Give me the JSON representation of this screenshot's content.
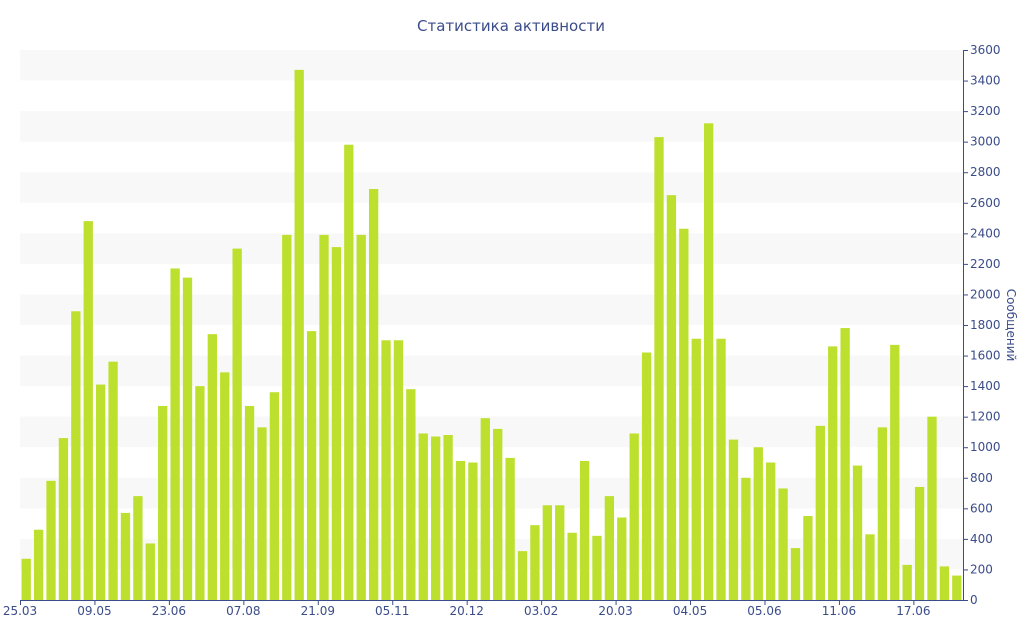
{
  "chart_data": {
    "type": "bar",
    "title": "Статистика активности",
    "ylabel": "Сообщений",
    "xlabel": "",
    "ylim": [
      0,
      3600
    ],
    "y_ticks": [
      0,
      200,
      400,
      600,
      800,
      1000,
      1200,
      1400,
      1600,
      1800,
      2000,
      2200,
      2400,
      2600,
      2800,
      3000,
      3200,
      3400,
      3600
    ],
    "y_axis_side": "right",
    "grid": "alternating horizontal bands",
    "x_tick_labels": [
      {
        "index": 0,
        "label": "25.03"
      },
      {
        "index": 6,
        "label": "09.05"
      },
      {
        "index": 12,
        "label": "23.06"
      },
      {
        "index": 18,
        "label": "07.08"
      },
      {
        "index": 24,
        "label": "21.09"
      },
      {
        "index": 30,
        "label": "05.11"
      },
      {
        "index": 36,
        "label": "20.12"
      },
      {
        "index": 42,
        "label": "03.02"
      },
      {
        "index": 48,
        "label": "20.03"
      },
      {
        "index": 54,
        "label": "04.05"
      },
      {
        "index": 60,
        "label": "05.06"
      },
      {
        "index": 66,
        "label": "11.06"
      },
      {
        "index": 72,
        "label": "17.06"
      }
    ],
    "values": [
      270,
      460,
      780,
      1060,
      1890,
      2480,
      1410,
      1560,
      570,
      680,
      370,
      1270,
      2170,
      2110,
      1400,
      1740,
      1490,
      2300,
      1270,
      1130,
      1360,
      2390,
      3470,
      1760,
      2390,
      2310,
      2980,
      2390,
      2690,
      1700,
      1700,
      1380,
      1090,
      1070,
      1080,
      910,
      900,
      1190,
      1120,
      930,
      320,
      490,
      620,
      620,
      440,
      910,
      420,
      680,
      540,
      1090,
      1620,
      3030,
      2650,
      2430,
      1710,
      3120,
      1710,
      1050,
      800,
      1000,
      900,
      730,
      340,
      550,
      1140,
      1660,
      1780,
      880,
      430,
      1130,
      1670,
      230,
      740,
      1200,
      220,
      160
    ],
    "bar_color": "#bde02e",
    "text_color": "#3b4c8a",
    "band_color": "#f8f8f8"
  }
}
